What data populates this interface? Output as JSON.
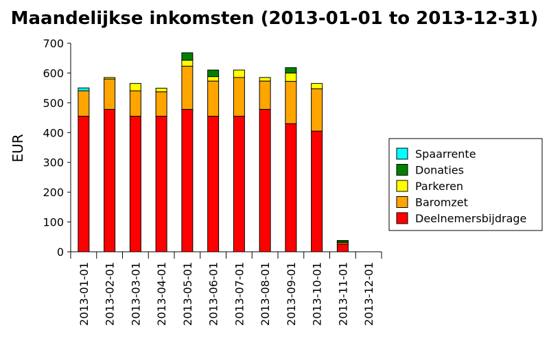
{
  "chart_data": {
    "type": "bar",
    "stacked": true,
    "title": "Maandelijkse inkomsten (2013-01-01 to 2013-12-31)",
    "xlabel": "",
    "ylabel": "EUR",
    "ylim": [
      0,
      700
    ],
    "yticks": [
      0,
      100,
      200,
      300,
      400,
      500,
      600,
      700
    ],
    "grid": false,
    "legend_position": "right",
    "categories": [
      "2013-01-01",
      "2013-02-01",
      "2013-03-01",
      "2013-04-01",
      "2013-05-01",
      "2013-06-01",
      "2013-07-01",
      "2013-08-01",
      "2013-09-01",
      "2013-10-01",
      "2013-11-01",
      "2013-12-01"
    ],
    "series": [
      {
        "name": "Deelnemersbijdrage",
        "color": "#ff0000",
        "values": [
          455,
          478,
          455,
          455,
          478,
          455,
          455,
          478,
          430,
          405,
          25,
          0
        ]
      },
      {
        "name": "Baromzet",
        "color": "#ffa500",
        "values": [
          85,
          102,
          85,
          82,
          145,
          118,
          130,
          95,
          142,
          142,
          5,
          0
        ]
      },
      {
        "name": "Parkeren",
        "color": "#ffff00",
        "values": [
          0,
          5,
          25,
          12,
          20,
          15,
          25,
          12,
          28,
          18,
          3,
          0
        ]
      },
      {
        "name": "Donaties",
        "color": "#008000",
        "values": [
          0,
          0,
          0,
          0,
          25,
          22,
          0,
          0,
          18,
          0,
          5,
          0
        ]
      },
      {
        "name": "Spaarrente",
        "color": "#00ffff",
        "values": [
          10,
          0,
          0,
          0,
          0,
          0,
          0,
          0,
          0,
          0,
          0,
          0
        ]
      }
    ]
  }
}
